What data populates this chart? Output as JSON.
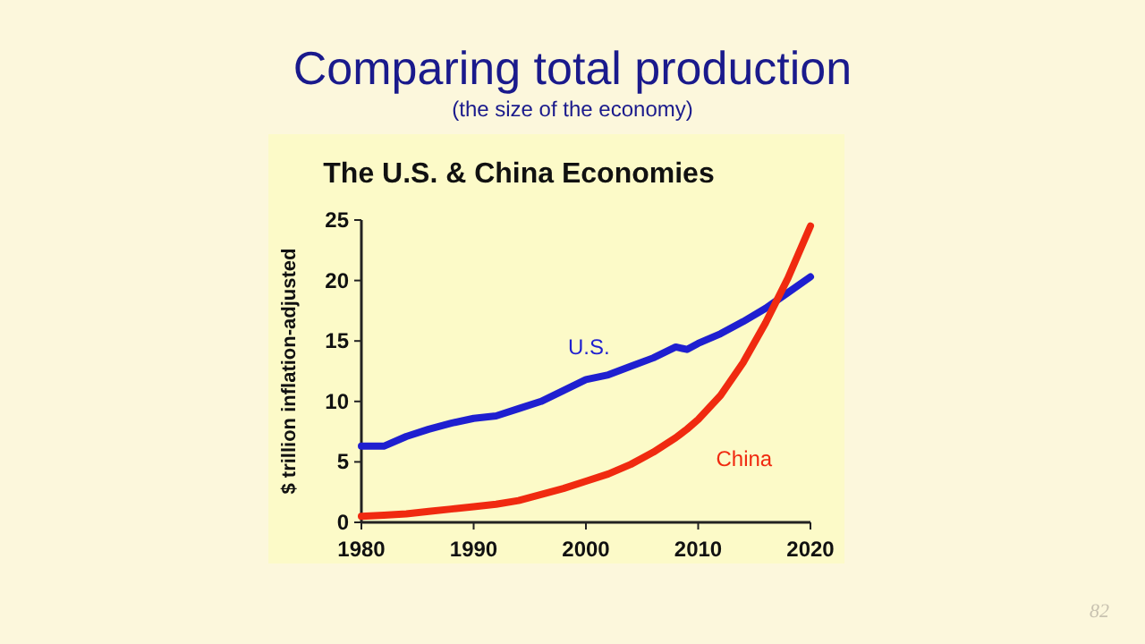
{
  "chart_data": {
    "type": "line",
    "title": "The U.S. & China Economies",
    "subtitle": "Comparing total production",
    "annotations": [
      "(the size of the economy)",
      "82"
    ],
    "ylabel": "$ trillion inflation-adjusted",
    "x": [
      1980,
      1982,
      1984,
      1986,
      1988,
      1990,
      1992,
      1994,
      1996,
      1998,
      2000,
      2002,
      2004,
      2006,
      2008,
      2009,
      2010,
      2012,
      2014,
      2016,
      2018,
      2020
    ],
    "series": [
      {
        "name": "U.S.",
        "color": "#1f1fd0",
        "values": [
          6.3,
          6.3,
          7.1,
          7.7,
          8.2,
          8.6,
          8.8,
          9.4,
          10.0,
          10.9,
          11.8,
          12.2,
          12.9,
          13.6,
          14.5,
          14.3,
          14.8,
          15.6,
          16.6,
          17.7,
          19.0,
          20.3
        ]
      },
      {
        "name": "China",
        "color": "#f02a10",
        "values": [
          0.5,
          0.6,
          0.7,
          0.9,
          1.1,
          1.3,
          1.5,
          1.8,
          2.3,
          2.8,
          3.4,
          4.0,
          4.8,
          5.8,
          7.0,
          7.7,
          8.5,
          10.5,
          13.2,
          16.5,
          20.2,
          24.5
        ]
      }
    ],
    "xlim": [
      1980,
      2020
    ],
    "xticks": [
      1980,
      1990,
      2000,
      2010,
      2020
    ],
    "ylim": [
      0,
      25
    ],
    "yticks": [
      0,
      5,
      10,
      15,
      20,
      25
    ],
    "grid": false,
    "line_style": "solid",
    "marker": "none"
  }
}
